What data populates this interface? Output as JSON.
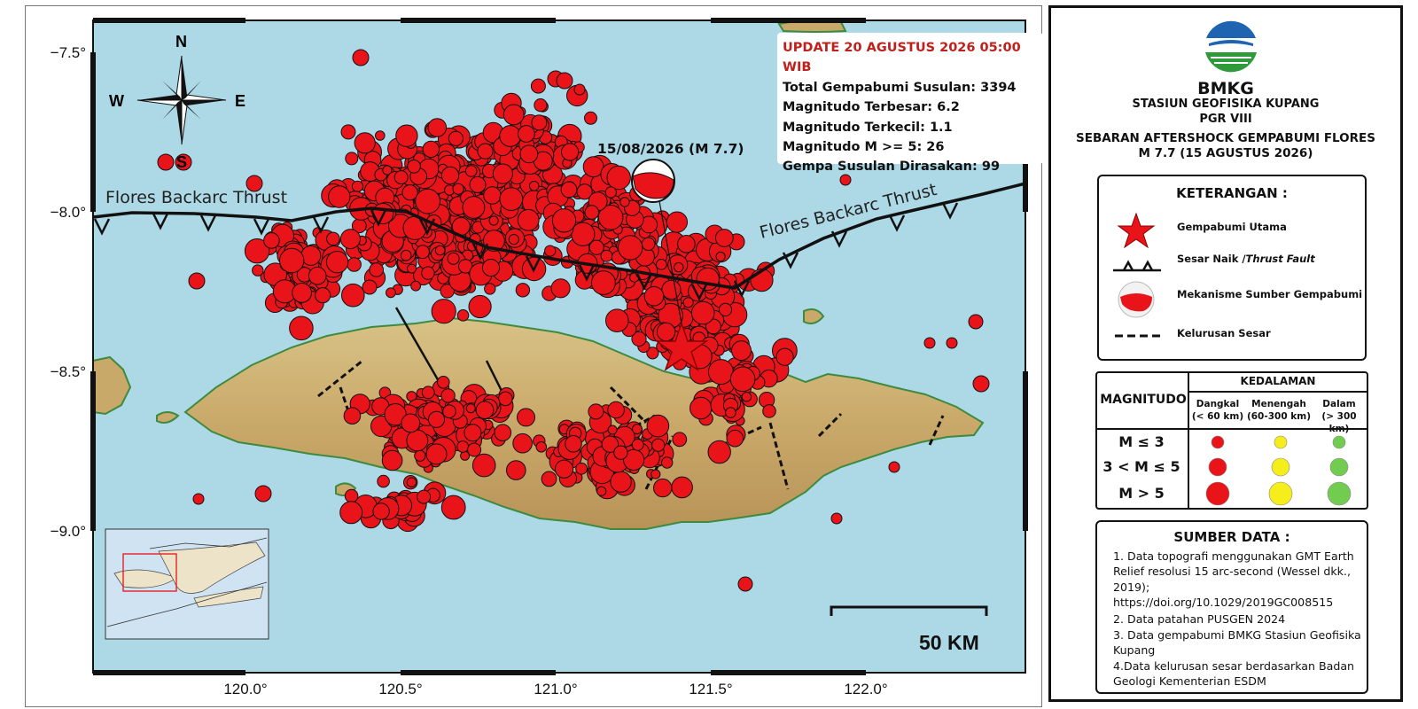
{
  "map": {
    "lon_ticks": [
      "120.0°",
      "120.5°",
      "121.0°",
      "121.5°",
      "122.0°"
    ],
    "lat_ticks": [
      "−7.5°",
      "−8.0°",
      "−8.5°",
      "−9.0°"
    ],
    "compass": {
      "n": "N",
      "s": "S",
      "e": "E",
      "w": "W"
    },
    "fault_labels": [
      "Flores Backarc Thrust",
      "Flores Backarc Thrust"
    ],
    "mainshock_label": "15/08/2026 (M 7.7)",
    "scale_label": "50 KM",
    "info": {
      "update": "UPDATE 20 AGUSTUS 2026 05:00 WIB",
      "total": "Total Gempabumi Susulan: 3394",
      "max": "Magnitudo Terbesar: 6.2",
      "min": "Magnitudo Terkecil: 1.1",
      "m5": "Magnitudo M >= 5: 26",
      "felt": "Gempa Susulan Dirasakan: 99"
    },
    "colors": {
      "sea": "#add8e6",
      "land": "#c9a96a",
      "quake": "#e8141a",
      "fault": "#111111"
    }
  },
  "legend": {
    "agency": "BMKG",
    "station": "STASIUN GEOFISIKA KUPANG",
    "region": "PGR VIII",
    "title1": "SEBARAN AFTERSHOCK GEMPABUMI FLORES",
    "title2": "M 7.7 (15 AGUSTUS 2026)",
    "keterangan": "KETERANGAN :",
    "items": {
      "main": "Gempabumi  Utama",
      "thrust_a": "Sesar Naik /",
      "thrust_b": "Thrust Fault",
      "mech": "Mekanisme Sumber Gempabumi",
      "lineament": "Kelurusan Sesar"
    },
    "magnitudo": "MAGNITUDO",
    "kedalaman": "KEDALAMAN",
    "depth": [
      {
        "name": "Dangkal",
        "range": "(< 60 km)"
      },
      {
        "name": "Menengah",
        "range": "(60-300 km)"
      },
      {
        "name": "Dalam",
        "range": "(> 300 km)"
      }
    ],
    "mag_rows": [
      "M ≤ 3",
      "3 < M ≤ 5",
      "M > 5"
    ],
    "depth_colors": [
      "#e8141a",
      "#f5ee1a",
      "#72cc50"
    ],
    "sumber": "SUMBER DATA :",
    "sources": [
      "1. Data topografi menggunakan GMT Earth Relief resolusi 15 arc-second (Wessel dkk., 2019); https://doi.org/10.1029/2019GC008515",
      "2. Data patahan PUSGEN 2024",
      "3. Data gempabumi BMKG Stasiun Geofisika Kupang",
      "4.Data kelurusan sesar berdasarkan Badan Geologi Kementerian ESDM"
    ]
  }
}
